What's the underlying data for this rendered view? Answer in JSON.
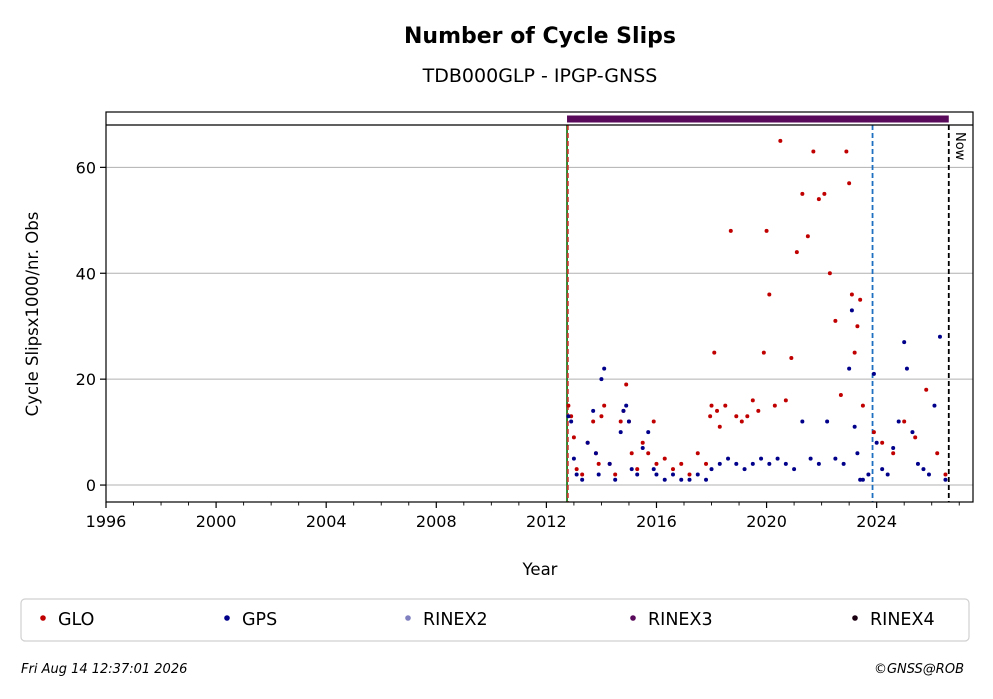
{
  "chart_data": {
    "type": "scatter",
    "title": "Number of Cycle Slips",
    "subtitle": "TDB000GLP - IPGP-GNSS",
    "xlabel": "Year",
    "ylabel": "Cycle Slipsx1000/nr. Obs",
    "xlim": [
      1996.0,
      2027.5
    ],
    "ylim": [
      -3.2,
      68.0
    ],
    "x_ticks": [
      1996,
      2000,
      2004,
      2008,
      2012,
      2016,
      2020,
      2024
    ],
    "x_tick_labels": [
      "1996",
      "2000",
      "2004",
      "2008",
      "2012",
      "2016",
      "2020",
      "2024"
    ],
    "y_ticks": [
      0,
      20,
      40,
      60
    ],
    "y_tick_labels": [
      "0",
      "20",
      "40",
      "60"
    ],
    "grid": "horizontal",
    "legend_placement": "bottom",
    "now_label": "Now",
    "vertical_lines": [
      {
        "x": 2012.75,
        "style": "solid",
        "color": "#1e7a1e"
      },
      {
        "x": 2012.78,
        "style": "dashed",
        "color": "#c0392b"
      },
      {
        "x": 2023.85,
        "style": "dashed",
        "color": "#1f6fc0"
      },
      {
        "x": 2026.62,
        "style": "dashed",
        "color": "#000000"
      }
    ],
    "rinex_bars": [
      {
        "name": "RINEX3",
        "start": 2012.75,
        "end": 2026.62,
        "color": "#5a0a5a"
      }
    ],
    "series": [
      {
        "name": "GLO",
        "color": "#c00000",
        "x": [
          2012.8,
          2012.9,
          2013.0,
          2013.1,
          2013.3,
          2013.5,
          2013.7,
          2013.8,
          2013.9,
          2014.0,
          2014.1,
          2014.3,
          2014.5,
          2014.7,
          2014.8,
          2014.9,
          2015.0,
          2015.1,
          2015.3,
          2015.5,
          2015.7,
          2015.9,
          2016.0,
          2016.3,
          2016.6,
          2016.9,
          2017.2,
          2017.5,
          2017.8,
          2017.95,
          2018.0,
          2018.1,
          2018.2,
          2018.3,
          2018.5,
          2018.7,
          2018.9,
          2019.1,
          2019.3,
          2019.5,
          2019.7,
          2019.9,
          2020.0,
          2020.1,
          2020.3,
          2020.5,
          2020.7,
          2020.9,
          2021.1,
          2021.3,
          2021.5,
          2021.7,
          2021.9,
          2022.1,
          2022.3,
          2022.5,
          2022.7,
          2022.9,
          2023.0,
          2023.1,
          2023.2,
          2023.3,
          2023.4,
          2023.5,
          2023.9,
          2024.2,
          2024.6,
          2025.0,
          2025.4,
          2025.8,
          2026.2,
          2026.5
        ],
        "y": [
          15.0,
          13.0,
          9.0,
          3.0,
          2.0,
          8.0,
          12.0,
          6.0,
          4.0,
          13.0,
          15.0,
          4.0,
          2.0,
          12.0,
          14.0,
          19.0,
          12.0,
          6.0,
          3.0,
          8.0,
          6.0,
          12.0,
          4.0,
          5.0,
          3.0,
          4.0,
          2.0,
          6.0,
          4.0,
          13.0,
          15.0,
          25.0,
          14.0,
          11.0,
          15.0,
          48.0,
          13.0,
          12.0,
          13.0,
          16.0,
          14.0,
          25.0,
          48.0,
          36.0,
          15.0,
          65.0,
          16.0,
          24.0,
          44.0,
          55.0,
          47.0,
          63.0,
          54.0,
          55.0,
          40.0,
          31.0,
          17.0,
          63.0,
          57.0,
          36.0,
          25.0,
          30.0,
          35.0,
          15.0,
          10.0,
          8.0,
          6.0,
          12.0,
          9.0,
          18.0,
          6.0,
          2.0
        ]
      },
      {
        "name": "GPS",
        "color": "#00008b",
        "x": [
          2012.8,
          2012.9,
          2013.0,
          2013.1,
          2013.3,
          2013.5,
          2013.7,
          2013.8,
          2013.9,
          2014.0,
          2014.1,
          2014.3,
          2014.5,
          2014.7,
          2014.8,
          2014.9,
          2015.0,
          2015.1,
          2015.3,
          2015.5,
          2015.7,
          2015.9,
          2016.0,
          2016.3,
          2016.6,
          2016.9,
          2017.2,
          2017.5,
          2017.8,
          2018.0,
          2018.3,
          2018.6,
          2018.9,
          2019.2,
          2019.5,
          2019.8,
          2020.1,
          2020.4,
          2020.7,
          2021.0,
          2021.3,
          2021.6,
          2021.9,
          2022.2,
          2022.5,
          2022.8,
          2023.0,
          2023.1,
          2023.2,
          2023.3,
          2023.4,
          2023.5,
          2023.7,
          2023.9,
          2024.0,
          2024.2,
          2024.4,
          2024.6,
          2024.8,
          2025.0,
          2025.1,
          2025.3,
          2025.5,
          2025.7,
          2025.9,
          2026.1,
          2026.3,
          2026.5
        ],
        "y": [
          13.0,
          12.0,
          5.0,
          2.0,
          1.0,
          8.0,
          14.0,
          6.0,
          2.0,
          20.0,
          22.0,
          4.0,
          1.0,
          10.0,
          14.0,
          15.0,
          12.0,
          3.0,
          2.0,
          7.0,
          10.0,
          3.0,
          2.0,
          1.0,
          2.0,
          1.0,
          1.0,
          2.0,
          1.0,
          3.0,
          4.0,
          5.0,
          4.0,
          3.0,
          4.0,
          5.0,
          4.0,
          5.0,
          4.0,
          3.0,
          12.0,
          5.0,
          4.0,
          12.0,
          5.0,
          4.0,
          22.0,
          33.0,
          11.0,
          6.0,
          1.0,
          1.0,
          2.0,
          21.0,
          8.0,
          3.0,
          2.0,
          7.0,
          12.0,
          27.0,
          22.0,
          10.0,
          4.0,
          3.0,
          2.0,
          15.0,
          28.0,
          1.0
        ]
      }
    ],
    "legend": [
      {
        "name": "GLO",
        "color": "#c00000"
      },
      {
        "name": "GPS",
        "color": "#00008b"
      },
      {
        "name": "RINEX2",
        "color": "#8080c0"
      },
      {
        "name": "RINEX3",
        "color": "#5a0a5a"
      },
      {
        "name": "RINEX4",
        "color": "#1a0010"
      }
    ]
  },
  "footer": {
    "timestamp": "Fri Aug 14 12:37:01 2026",
    "credit": "©GNSS@ROB"
  }
}
